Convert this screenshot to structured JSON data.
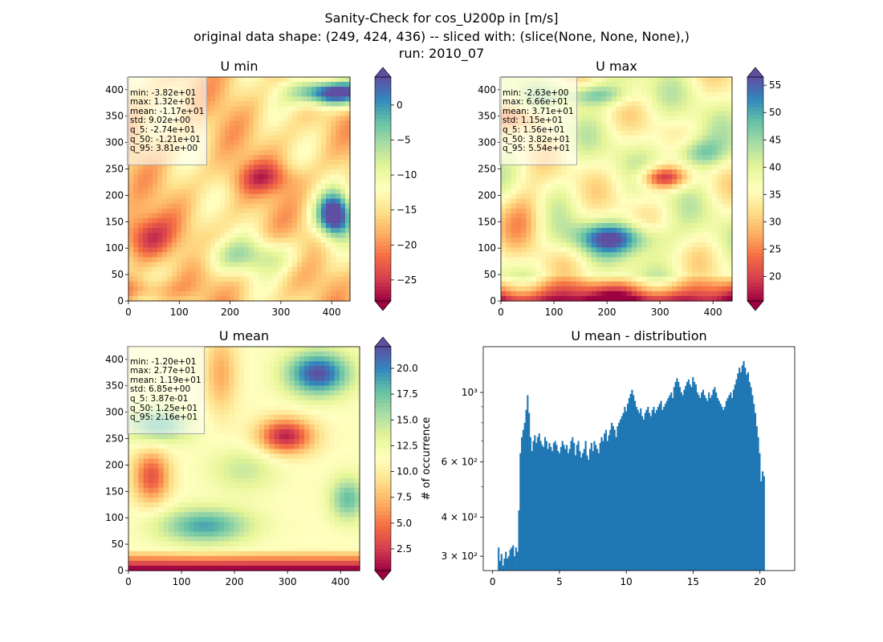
{
  "figure": {
    "title_lines": [
      "Sanity-Check for cos_U200p in [m/s]",
      "original data shape: (249, 424, 436) -- sliced with: (slice(None, None, None),)",
      "run: 2010_07"
    ]
  },
  "chart_data": [
    {
      "type": "heatmap",
      "title": "U min",
      "colormap": "Spectral",
      "xlim": [
        0,
        436
      ],
      "ylim": [
        0,
        424
      ],
      "xticks": [
        "0",
        "100",
        "200",
        "300",
        "400"
      ],
      "yticks": [
        "0",
        "50",
        "100",
        "150",
        "200",
        "250",
        "300",
        "350",
        "400"
      ],
      "colorbar": {
        "vmin": -28,
        "vmax": 4,
        "ticks": [
          -25,
          -20,
          -15,
          -10,
          -5,
          0
        ],
        "tick_labels": [
          "−25",
          "−20",
          "−15",
          "−10",
          "−5",
          "0"
        ],
        "extend": "both"
      },
      "stats": [
        "min: -3.82e+01",
        "max: 1.32e+01",
        "mean: -1.17e+01",
        "std: 9.02e+00",
        "q_5: -2.74e+01",
        "q_50: -1.21e+01",
        "q_95: 3.81e+00"
      ]
    },
    {
      "type": "heatmap",
      "title": "U max",
      "colormap": "Spectral",
      "xlim": [
        0,
        436
      ],
      "ylim": [
        0,
        424
      ],
      "xticks": [
        "0",
        "100",
        "200",
        "300",
        "400"
      ],
      "yticks": [
        "0",
        "50",
        "100",
        "150",
        "200",
        "250",
        "300",
        "350",
        "400"
      ],
      "colorbar": {
        "vmin": 15.5,
        "vmax": 56.5,
        "ticks": [
          20,
          25,
          30,
          35,
          40,
          45,
          50,
          55
        ],
        "tick_labels": [
          "20",
          "25",
          "30",
          "35",
          "40",
          "45",
          "50",
          "55"
        ],
        "extend": "both"
      },
      "stats": [
        "min: -2.63e+00",
        "max: 6.66e+01",
        "mean: 3.71e+01",
        "std: 1.15e+01",
        "q_5: 1.56e+01",
        "q_50: 3.82e+01",
        "q_95: 5.54e+01"
      ]
    },
    {
      "type": "heatmap",
      "title": "U mean",
      "colormap": "Spectral",
      "xlim": [
        0,
        436
      ],
      "ylim": [
        0,
        424
      ],
      "xticks": [
        "0",
        "100",
        "200",
        "300",
        "400"
      ],
      "yticks": [
        "0",
        "50",
        "100",
        "150",
        "200",
        "250",
        "300",
        "350",
        "400"
      ],
      "colorbar": {
        "vmin": 0.4,
        "vmax": 22.1,
        "ticks": [
          2.5,
          5.0,
          7.5,
          10.0,
          12.5,
          15.0,
          17.5,
          20.0
        ],
        "tick_labels": [
          "2.5",
          "5.0",
          "7.5",
          "10.0",
          "12.5",
          "15.0",
          "17.5",
          "20.0"
        ],
        "extend": "both"
      },
      "stats": [
        "min: -1.20e+01",
        "max: 2.77e+01",
        "mean: 1.19e+01",
        "std: 6.85e+00",
        "q_5: 3.87e-01",
        "q_50: 1.25e+01",
        "q_95: 2.16e+01"
      ]
    },
    {
      "type": "bar",
      "title": "U mean - distribution",
      "ylabel": "# of occurrence",
      "yscale": "log",
      "color": "#1f77b4",
      "xlim": [
        -0.7,
        22.6
      ],
      "ylim": [
        270,
        1400
      ],
      "xticks": [
        "0",
        "5",
        "10",
        "15",
        "20"
      ],
      "yticks_major": [
        {
          "value": 300,
          "label": "3 × 10²"
        },
        {
          "value": 400,
          "label": "4 × 10²"
        },
        {
          "value": 600,
          "label": "6 × 10²"
        },
        {
          "value": 1000,
          "label": "10³"
        }
      ],
      "yticks_minor": [
        500,
        700,
        800,
        900
      ],
      "bin_start": 0.39,
      "bin_width": 0.1085,
      "values": [
        320,
        290,
        305,
        280,
        295,
        310,
        295,
        300,
        315,
        320,
        325,
        300,
        320,
        310,
        420,
        640,
        720,
        760,
        800,
        880,
        980,
        860,
        720,
        650,
        700,
        730,
        690,
        720,
        740,
        700,
        680,
        670,
        720,
        700,
        660,
        690,
        670,
        650,
        690,
        700,
        680,
        650,
        640,
        670,
        700,
        680,
        660,
        680,
        640,
        660,
        700,
        720,
        690,
        630,
        680,
        700,
        650,
        620,
        640,
        660,
        700,
        630,
        610,
        660,
        690,
        650,
        700,
        680,
        660,
        640,
        690,
        720,
        700,
        740,
        760,
        700,
        730,
        760,
        800,
        780,
        760,
        720,
        780,
        800,
        820,
        840,
        860,
        900,
        870,
        920,
        960,
        990,
        1020,
        980,
        940,
        900,
        880,
        860,
        890,
        840,
        820,
        860,
        880,
        900,
        860,
        840,
        880,
        900,
        860,
        880,
        900,
        920,
        940,
        880,
        900,
        920,
        940,
        960,
        980,
        1000,
        960,
        1040,
        1080,
        1110,
        1080,
        1040,
        1000,
        980,
        1020,
        1050,
        1080,
        1100,
        1060,
        1040,
        1120,
        1080,
        1060,
        1000,
        980,
        960,
        1000,
        1020,
        980,
        960,
        940,
        1000,
        960,
        980,
        1020,
        1040,
        1000,
        960,
        940,
        920,
        900,
        880,
        900,
        940,
        960,
        980,
        1000,
        960,
        1020,
        1060,
        1100,
        1150,
        1200,
        1160,
        1220,
        1260,
        1200,
        1140,
        1160,
        1080,
        1040,
        980,
        920,
        860,
        780,
        720,
        640,
        520,
        560,
        540
      ]
    }
  ]
}
